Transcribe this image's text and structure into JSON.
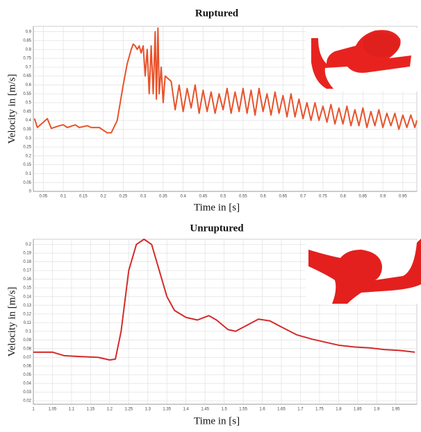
{
  "chart_data": [
    {
      "type": "line",
      "title": "Ruptured",
      "x_label": "Time in [s]",
      "y_label": "Velocity in [m/s]",
      "x": [
        0.028,
        0.035,
        0.06,
        0.07,
        0.09,
        0.1,
        0.11,
        0.13,
        0.14,
        0.16,
        0.17,
        0.19,
        0.21,
        0.22,
        0.235,
        0.25,
        0.26,
        0.27,
        0.275,
        0.28,
        0.285,
        0.29,
        0.295,
        0.3,
        0.305,
        0.31,
        0.315,
        0.32,
        0.325,
        0.33,
        0.333,
        0.337,
        0.34,
        0.345,
        0.35,
        0.355,
        0.37,
        0.38,
        0.39,
        0.4,
        0.41,
        0.42,
        0.43,
        0.44,
        0.45,
        0.46,
        0.47,
        0.48,
        0.49,
        0.5,
        0.51,
        0.52,
        0.53,
        0.54,
        0.55,
        0.56,
        0.57,
        0.58,
        0.59,
        0.6,
        0.61,
        0.62,
        0.63,
        0.64,
        0.65,
        0.66,
        0.67,
        0.68,
        0.69,
        0.7,
        0.71,
        0.72,
        0.73,
        0.74,
        0.75,
        0.76,
        0.77,
        0.78,
        0.79,
        0.8,
        0.81,
        0.82,
        0.83,
        0.84,
        0.85,
        0.86,
        0.87,
        0.88,
        0.89,
        0.9,
        0.91,
        0.92,
        0.93,
        0.94,
        0.95,
        0.96,
        0.97,
        0.98,
        0.985
      ],
      "series": [
        {
          "name": "Ruptured",
          "color": "#e8522a",
          "values": [
            0.41,
            0.36,
            0.41,
            0.355,
            0.37,
            0.375,
            0.36,
            0.375,
            0.36,
            0.37,
            0.36,
            0.36,
            0.33,
            0.33,
            0.4,
            0.6,
            0.72,
            0.8,
            0.83,
            0.82,
            0.8,
            0.82,
            0.78,
            0.82,
            0.65,
            0.8,
            0.55,
            0.82,
            0.55,
            0.9,
            0.52,
            0.92,
            0.55,
            0.7,
            0.5,
            0.65,
            0.62,
            0.46,
            0.6,
            0.45,
            0.58,
            0.47,
            0.6,
            0.44,
            0.57,
            0.45,
            0.56,
            0.44,
            0.55,
            0.46,
            0.58,
            0.44,
            0.56,
            0.45,
            0.58,
            0.44,
            0.57,
            0.43,
            0.58,
            0.45,
            0.55,
            0.43,
            0.56,
            0.44,
            0.54,
            0.42,
            0.55,
            0.42,
            0.52,
            0.41,
            0.5,
            0.4,
            0.5,
            0.4,
            0.48,
            0.39,
            0.49,
            0.38,
            0.47,
            0.38,
            0.48,
            0.37,
            0.46,
            0.37,
            0.47,
            0.36,
            0.45,
            0.37,
            0.46,
            0.36,
            0.44,
            0.37,
            0.44,
            0.35,
            0.43,
            0.36,
            0.43,
            0.36,
            0.4
          ]
        }
      ],
      "xlim": [
        0.025,
        0.985
      ],
      "ylim": [
        0,
        0.93
      ],
      "xticks": [
        0.05,
        0.1,
        0.15,
        0.2,
        0.25,
        0.3,
        0.35,
        0.4,
        0.45,
        0.5,
        0.55,
        0.6,
        0.65,
        0.7,
        0.75,
        0.8,
        0.85,
        0.9,
        0.95
      ],
      "yticks": [
        0,
        0.05,
        0.1,
        0.15,
        0.2,
        0.25,
        0.3,
        0.35,
        0.4,
        0.45,
        0.5,
        0.55,
        0.6,
        0.65,
        0.7,
        0.75,
        0.8,
        0.85,
        0.9
      ],
      "grid": true
    },
    {
      "type": "line",
      "title": "Unruptured",
      "x_label": "Time in [s]",
      "y_label": "Velocity in [m/s]",
      "x": [
        1,
        1.05,
        1.08,
        1.12,
        1.17,
        1.2,
        1.215,
        1.23,
        1.25,
        1.27,
        1.29,
        1.31,
        1.33,
        1.35,
        1.37,
        1.4,
        1.43,
        1.46,
        1.48,
        1.51,
        1.53,
        1.56,
        1.59,
        1.62,
        1.65,
        1.69,
        1.73,
        1.77,
        1.8,
        1.84,
        1.88,
        1.92,
        1.96,
        2
      ],
      "series": [
        {
          "name": "Unruptured",
          "color": "#d42a2a",
          "values": [
            0.076,
            0.076,
            0.072,
            0.071,
            0.07,
            0.067,
            0.068,
            0.1,
            0.17,
            0.2,
            0.206,
            0.2,
            0.17,
            0.14,
            0.124,
            0.116,
            0.113,
            0.118,
            0.113,
            0.102,
            0.1,
            0.107,
            0.114,
            0.112,
            0.105,
            0.096,
            0.091,
            0.087,
            0.084,
            0.082,
            0.081,
            0.079,
            0.078,
            0.076
          ]
        }
      ],
      "xlim": [
        1,
        2.005
      ],
      "ylim": [
        0.016,
        0.206
      ],
      "xticks": [
        1,
        1.05,
        1.1,
        1.15,
        1.2,
        1.25,
        1.3,
        1.35,
        1.4,
        1.45,
        1.5,
        1.55,
        1.6,
        1.65,
        1.7,
        1.75,
        1.8,
        1.85,
        1.9,
        1.95
      ],
      "yticks": [
        0.02,
        0.03,
        0.04,
        0.05,
        0.06,
        0.07,
        0.08,
        0.09,
        0.1,
        0.11,
        0.12,
        0.13,
        0.14,
        0.15,
        0.16,
        0.17,
        0.18,
        0.19,
        0.2
      ],
      "grid": true
    }
  ]
}
